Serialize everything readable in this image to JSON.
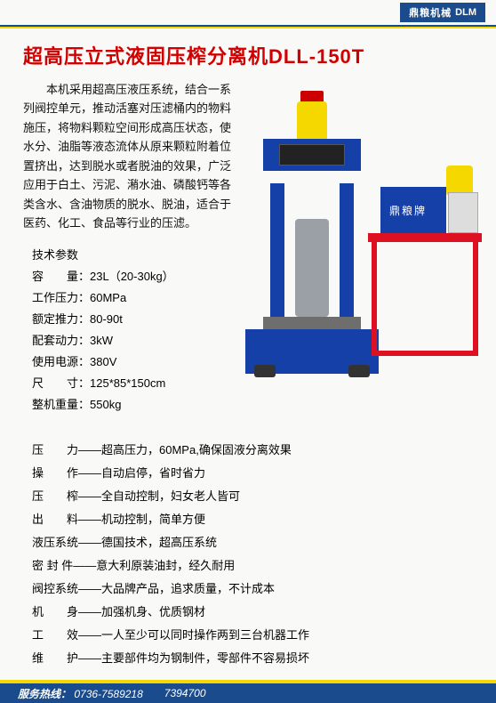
{
  "brand": {
    "name": "鼎粮机械",
    "sub": "DLM"
  },
  "title": "超高压立式液固压榨分离机DLL-150T",
  "intro": "本机采用超高压液压系统，结合一系列阀控单元，推动活塞对压滤桶内的物料施压，将物料颗粒空间形成高压状态，使水分、油脂等液态流体从原来颗粒附着位置挤出，达到脱水或者脱油的效果，广泛应用于白土、污泥、潲水油、磷酸钙等各类含水、含油物质的脱水、脱油，适合于医药、化工、食品等行业的压滤。",
  "spec_title": "技术参数",
  "specs": [
    {
      "label": "容　　量：",
      "value": "23L（20-30kg）"
    },
    {
      "label": "工作压力：",
      "value": "60MPa"
    },
    {
      "label": "额定推力：",
      "value": "80-90t"
    },
    {
      "label": "配套动力：",
      "value": "3kW"
    },
    {
      "label": "使用电源：",
      "value": "380V"
    },
    {
      "label": "尺　　寸：",
      "value": "125*85*150cm"
    },
    {
      "label": "整机重量：",
      "value": "550kg"
    }
  ],
  "pump_label": "鼎粮牌",
  "features": [
    {
      "label": "压　　力——",
      "value": "超高压力，60MPa,确保固液分离效果"
    },
    {
      "label": "操　　作——",
      "value": "自动启停，省时省力"
    },
    {
      "label": "压　　榨——",
      "value": "全自动控制，妇女老人皆可"
    },
    {
      "label": "出　　料——",
      "value": "机动控制，简单方便"
    },
    {
      "label": "液压系统——",
      "value": "德国技术，超高压系统"
    },
    {
      "label": "密 封 件——",
      "value": "意大利原装油封，经久耐用"
    },
    {
      "label": "阀控系统——",
      "value": "大品牌产品，追求质量，不计成本"
    },
    {
      "label": "机　　身——",
      "value": "加强机身、优质钢材"
    },
    {
      "label": "工　　效——",
      "value": "一人至少可以同时操作两到三台机器工作"
    },
    {
      "label": "维　　护——",
      "value": "主要部件均为钢制件，零部件不容易损坏"
    }
  ],
  "footer": {
    "label": "服务热线：",
    "phone1": "0736-7589218",
    "phone2": "7394700"
  },
  "colors": {
    "title": "#d10000",
    "brand_bg": "#1a4b8c",
    "accent": "#f5d800",
    "machine_blue": "#1540a8",
    "red": "#d12"
  }
}
